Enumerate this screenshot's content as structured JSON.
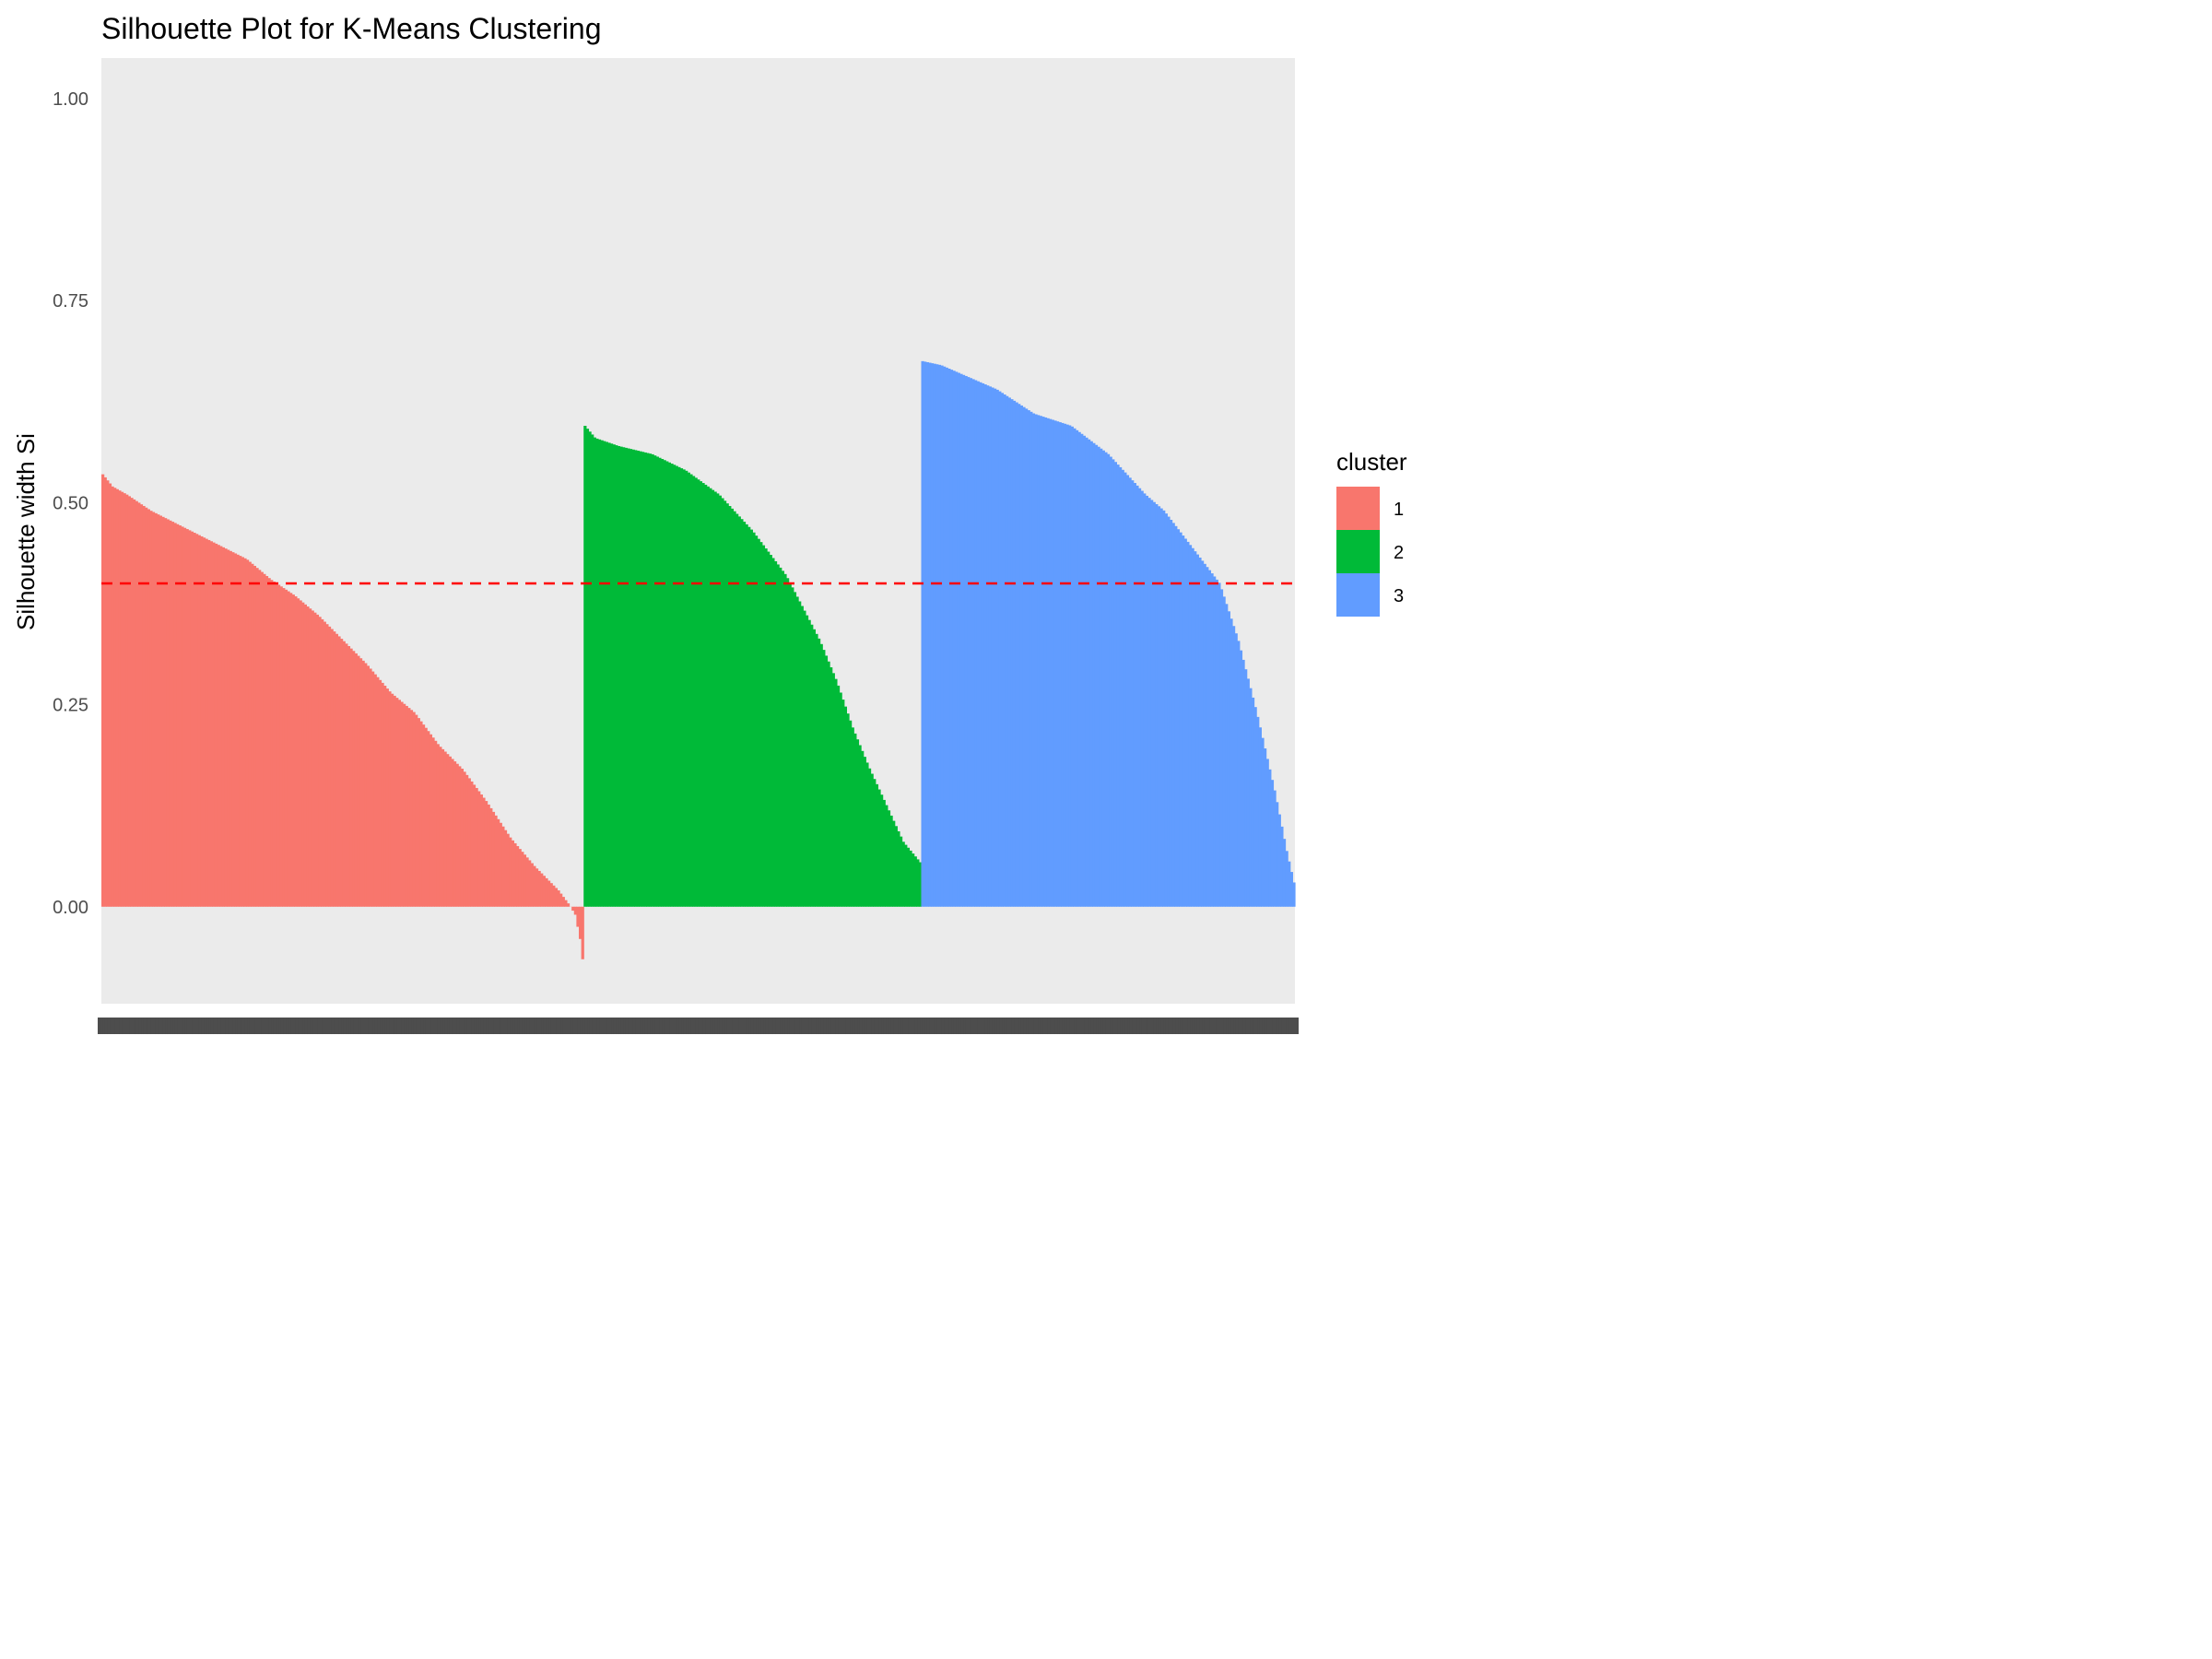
{
  "chart_data": {
    "type": "bar",
    "title": "Silhouette Plot for K-Means Clustering",
    "xlabel": "",
    "ylabel": "Silhouette width Si",
    "ylim": [
      -0.12,
      1.05
    ],
    "yticks": [
      "0.00",
      "0.25",
      "0.50",
      "0.75",
      "1.00"
    ],
    "ytick_values": [
      0,
      0.25,
      0.5,
      0.75,
      1.0
    ],
    "reference_line": {
      "y": 0.4,
      "color": "#ff0000",
      "style": "dashed"
    },
    "legend": {
      "title": "cluster",
      "placement": "right"
    },
    "series": [
      {
        "name": "1",
        "color": "#F8766D",
        "profile": [
          [
            0,
            0.535
          ],
          [
            0.02,
            0.52
          ],
          [
            0.05,
            0.51
          ],
          [
            0.1,
            0.49
          ],
          [
            0.2,
            0.46
          ],
          [
            0.3,
            0.43
          ],
          [
            0.35,
            0.405
          ],
          [
            0.4,
            0.385
          ],
          [
            0.45,
            0.36
          ],
          [
            0.5,
            0.33
          ],
          [
            0.55,
            0.3
          ],
          [
            0.6,
            0.265
          ],
          [
            0.65,
            0.24
          ],
          [
            0.7,
            0.2
          ],
          [
            0.75,
            0.17
          ],
          [
            0.8,
            0.13
          ],
          [
            0.85,
            0.085
          ],
          [
            0.9,
            0.05
          ],
          [
            0.95,
            0.02
          ],
          [
            0.975,
            0.0
          ],
          [
            0.985,
            -0.01
          ],
          [
            0.995,
            -0.04
          ],
          [
            1.0,
            -0.065
          ]
        ],
        "count": 200
      },
      {
        "name": "2",
        "color": "#00BA38",
        "profile": [
          [
            0,
            0.595
          ],
          [
            0.03,
            0.58
          ],
          [
            0.1,
            0.57
          ],
          [
            0.2,
            0.56
          ],
          [
            0.3,
            0.54
          ],
          [
            0.4,
            0.51
          ],
          [
            0.5,
            0.465
          ],
          [
            0.6,
            0.41
          ],
          [
            0.65,
            0.37
          ],
          [
            0.7,
            0.33
          ],
          [
            0.75,
            0.28
          ],
          [
            0.8,
            0.22
          ],
          [
            0.85,
            0.17
          ],
          [
            0.9,
            0.125
          ],
          [
            0.95,
            0.08
          ],
          [
            1.0,
            0.055
          ]
        ],
        "count": 140
      },
      {
        "name": "3",
        "color": "#619CFF",
        "profile": [
          [
            0,
            0.675
          ],
          [
            0.05,
            0.67
          ],
          [
            0.1,
            0.66
          ],
          [
            0.2,
            0.64
          ],
          [
            0.3,
            0.61
          ],
          [
            0.4,
            0.595
          ],
          [
            0.5,
            0.56
          ],
          [
            0.6,
            0.51
          ],
          [
            0.65,
            0.49
          ],
          [
            0.7,
            0.46
          ],
          [
            0.75,
            0.43
          ],
          [
            0.8,
            0.4
          ],
          [
            0.85,
            0.33
          ],
          [
            0.9,
            0.24
          ],
          [
            0.95,
            0.14
          ],
          [
            0.98,
            0.07
          ],
          [
            1.0,
            0.03
          ]
        ],
        "count": 155
      }
    ]
  }
}
